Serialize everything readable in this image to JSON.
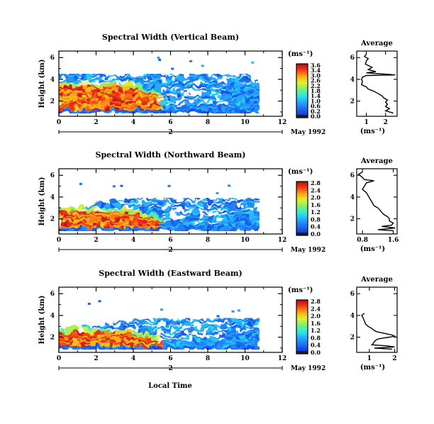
{
  "chart_data": [
    {
      "type": "heatmap",
      "title": "Spectral Width (Vertical Beam)",
      "ylabel": "Height (km)",
      "xlim": [
        0,
        12
      ],
      "ylim": [
        0.6,
        6.6
      ],
      "x_ticks": [
        "0",
        "2",
        "4",
        "6",
        "8",
        "10",
        "12"
      ],
      "y_ticks": [
        "2",
        "4",
        "6"
      ],
      "colorbar": {
        "unit": "(ms⁻¹)",
        "min": 0.0,
        "max": 3.6,
        "tick_labels": [
          "3.6",
          "3.4",
          "3.0",
          "2.6",
          "2.2",
          "1.8",
          "1.4",
          "1.0",
          "0.6",
          "0.2",
          "0.0"
        ]
      },
      "date_axis": {
        "day": "2",
        "label": "May 1992"
      },
      "data_extent": {
        "x_end": 10.7,
        "y_min": 0.9,
        "high_width_top": 3.3,
        "mid_width_top": 4.4
      },
      "average_profile": {
        "title": "Average",
        "xlabel": "(ms⁻¹)",
        "xlim": [
          0.5,
          2.6
        ],
        "x_ticks": [
          "1",
          "2"
        ],
        "y_ticks": [
          "2",
          "4",
          "6"
        ],
        "points": [
          [
            1.0,
            6.3
          ],
          [
            0.9,
            6.1
          ],
          [
            1.1,
            5.9
          ],
          [
            1.0,
            5.7
          ],
          [
            0.95,
            5.4
          ],
          [
            1.3,
            5.1
          ],
          [
            1.1,
            4.9
          ],
          [
            1.5,
            4.7
          ],
          [
            1.0,
            4.6
          ],
          [
            2.2,
            4.45
          ],
          [
            2.5,
            4.4
          ],
          [
            1.0,
            4.35
          ],
          [
            0.8,
            4.2
          ],
          [
            0.75,
            4.0
          ],
          [
            0.8,
            3.8
          ],
          [
            0.75,
            3.5
          ],
          [
            1.0,
            3.3
          ],
          [
            1.1,
            3.1
          ],
          [
            1.4,
            2.9
          ],
          [
            1.6,
            2.7
          ],
          [
            1.8,
            2.5
          ],
          [
            1.9,
            2.3
          ],
          [
            2.1,
            2.1
          ],
          [
            2.0,
            1.9
          ],
          [
            2.1,
            1.7
          ],
          [
            2.0,
            1.5
          ],
          [
            2.2,
            1.3
          ],
          [
            2.0,
            1.1
          ],
          [
            2.4,
            0.9
          ]
        ]
      }
    },
    {
      "type": "heatmap",
      "title": "Spectral Width (Northward Beam)",
      "ylabel": "Height (km)",
      "xlim": [
        0,
        12
      ],
      "ylim": [
        0.6,
        6.6
      ],
      "x_ticks": [
        "0",
        "2",
        "4",
        "6",
        "8",
        "10",
        "12"
      ],
      "y_ticks": [
        "2",
        "4",
        "6"
      ],
      "colorbar": {
        "unit": "(ms⁻¹)",
        "min": 0.0,
        "max": 2.8,
        "tick_labels": [
          "2.8",
          "2.4",
          "2.0",
          "1.6",
          "1.2",
          "0.8",
          "0.4",
          "0.0"
        ]
      },
      "date_axis": {
        "day": "2",
        "label": "May 1992"
      },
      "data_extent": {
        "x_end": 10.7,
        "y_min": 0.9,
        "high_width_top": 2.6,
        "mid_width_top": 3.8
      },
      "average_profile": {
        "title": "Average",
        "xlabel": "(ms⁻¹)",
        "xlim": [
          0.65,
          1.7
        ],
        "x_ticks": [
          "0.8",
          "1.6"
        ],
        "y_ticks": [
          "2",
          "4",
          "6"
        ],
        "points": [
          [
            0.8,
            6.3
          ],
          [
            0.7,
            6.1
          ],
          [
            0.8,
            5.8
          ],
          [
            0.85,
            5.6
          ],
          [
            1.1,
            5.5
          ],
          [
            0.9,
            5.3
          ],
          [
            0.85,
            5.0
          ],
          [
            0.8,
            4.7
          ],
          [
            0.9,
            4.4
          ],
          [
            0.95,
            4.1
          ],
          [
            1.0,
            3.8
          ],
          [
            1.05,
            3.5
          ],
          [
            1.1,
            3.2
          ],
          [
            1.2,
            3.0
          ],
          [
            1.25,
            2.8
          ],
          [
            1.3,
            2.6
          ],
          [
            1.35,
            2.4
          ],
          [
            1.45,
            2.2
          ],
          [
            1.5,
            2.0
          ],
          [
            1.5,
            1.8
          ],
          [
            1.6,
            1.6
          ],
          [
            1.55,
            1.4
          ],
          [
            1.3,
            1.3
          ],
          [
            1.65,
            1.15
          ],
          [
            1.2,
            1.0
          ],
          [
            1.6,
            0.9
          ]
        ]
      }
    },
    {
      "type": "heatmap",
      "title": "Spectral Width (Eastward Beam)",
      "ylabel": "Height (km)",
      "xlabel": "Local Time",
      "xlim": [
        0,
        12
      ],
      "ylim": [
        0.6,
        6.6
      ],
      "x_ticks": [
        "0",
        "2",
        "4",
        "6",
        "8",
        "10",
        "12"
      ],
      "y_ticks": [
        "2",
        "4",
        "6"
      ],
      "colorbar": {
        "unit": "(ms⁻¹)",
        "min": 0.0,
        "max": 2.8,
        "tick_labels": [
          "2.8",
          "2.4",
          "2.0",
          "1.6",
          "1.2",
          "0.8",
          "0.4",
          "0.0"
        ]
      },
      "date_axis": {
        "day": "2",
        "label": "May 1992"
      },
      "data_extent": {
        "x_end": 10.7,
        "y_min": 0.9,
        "high_width_top": 2.4,
        "mid_width_top": 3.6
      },
      "average_profile": {
        "title": "Average",
        "xlabel": "(ms⁻¹)",
        "xlim": [
          0.5,
          2.1
        ],
        "x_ticks": [
          "1",
          "2"
        ],
        "y_ticks": [
          "2",
          "4",
          "6"
        ],
        "points": [
          [
            0.8,
            4.2
          ],
          [
            0.7,
            4.0
          ],
          [
            0.75,
            3.8
          ],
          [
            0.8,
            3.5
          ],
          [
            0.85,
            3.2
          ],
          [
            0.95,
            3.0
          ],
          [
            1.1,
            2.8
          ],
          [
            1.2,
            2.6
          ],
          [
            1.3,
            2.5
          ],
          [
            1.5,
            2.4
          ],
          [
            1.7,
            2.3
          ],
          [
            1.9,
            2.2
          ],
          [
            2.0,
            2.1
          ],
          [
            1.8,
            2.0
          ],
          [
            1.5,
            1.9
          ],
          [
            1.3,
            1.8
          ],
          [
            1.2,
            1.6
          ],
          [
            1.15,
            1.4
          ],
          [
            1.1,
            1.3
          ],
          [
            1.7,
            1.2
          ],
          [
            2.0,
            1.1
          ],
          [
            1.2,
            1.0
          ],
          [
            1.9,
            0.9
          ]
        ]
      }
    }
  ]
}
